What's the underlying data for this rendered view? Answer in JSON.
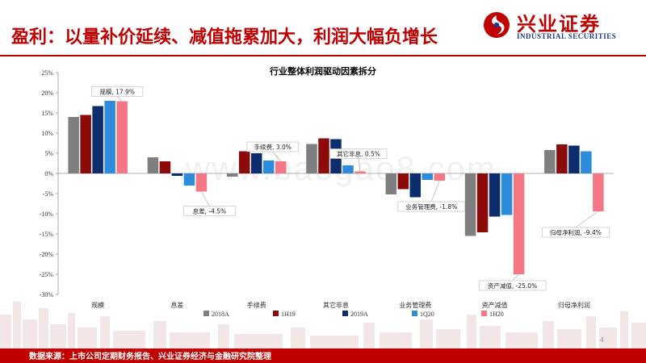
{
  "header": {
    "title": "盈利：以量补价延续、减值拖累加大，利润大幅负增长",
    "logo_cn": "兴业证券",
    "logo_en": "INDUSTRIAL SECURITIES",
    "logo_icon": "industrial-securities-logo-icon"
  },
  "watermark": "www.baogao8.com",
  "footer": {
    "source": "数据来源：上市公司定期财务报告、兴业证券经济与金融研究院整理",
    "page": "4"
  },
  "colors": {
    "brand_red": "#c00000",
    "s2018A": "#7f7f7f",
    "s1H19": "#8b0a0a",
    "s2019A": "#0d2d6c",
    "s1Q20": "#2e8cdc",
    "s1H20": "#f47786"
  },
  "chart_data": {
    "type": "bar",
    "title": "行业整体利润驱动因素拆分",
    "categories": [
      "规模",
      "息差",
      "手续费",
      "其它非息",
      "业务管理费",
      "资产减值",
      "归母净利润"
    ],
    "series": [
      {
        "name": "2018A",
        "values": [
          14.0,
          4.0,
          -0.8,
          7.3,
          -5.2,
          -15.5,
          5.8
        ]
      },
      {
        "name": "1H19",
        "values": [
          14.5,
          3.0,
          5.5,
          8.7,
          -3.9,
          -14.6,
          7.2
        ]
      },
      {
        "name": "2019A",
        "values": [
          16.7,
          -0.6,
          5.0,
          8.5,
          -5.9,
          -10.7,
          6.9
        ]
      },
      {
        "name": "1Q20",
        "values": [
          18.0,
          -3.0,
          3.2,
          2.0,
          -1.6,
          -10.3,
          5.5
        ]
      },
      {
        "name": "1H20",
        "values": [
          17.9,
          -4.5,
          3.0,
          0.5,
          -1.8,
          -25.0,
          -9.4
        ]
      }
    ],
    "ylim": [
      -30,
      25
    ],
    "ytick_step": 5,
    "yticks": [
      "25%",
      "20%",
      "15%",
      "10%",
      "5%",
      "0%",
      "-5%",
      "-10%",
      "-15%",
      "-20%",
      "-25%",
      "-30%"
    ],
    "annotations": [
      "规模, 17.9%",
      "息差, -4.5%",
      "手续费, 3.0%",
      "其它非息, 0.5%",
      "业务管理费, -1.8%",
      "资产减值, -25.0%",
      "归母净利润, -9.4%"
    ],
    "xlabel": "",
    "ylabel": "",
    "legend_position": "bottom"
  }
}
